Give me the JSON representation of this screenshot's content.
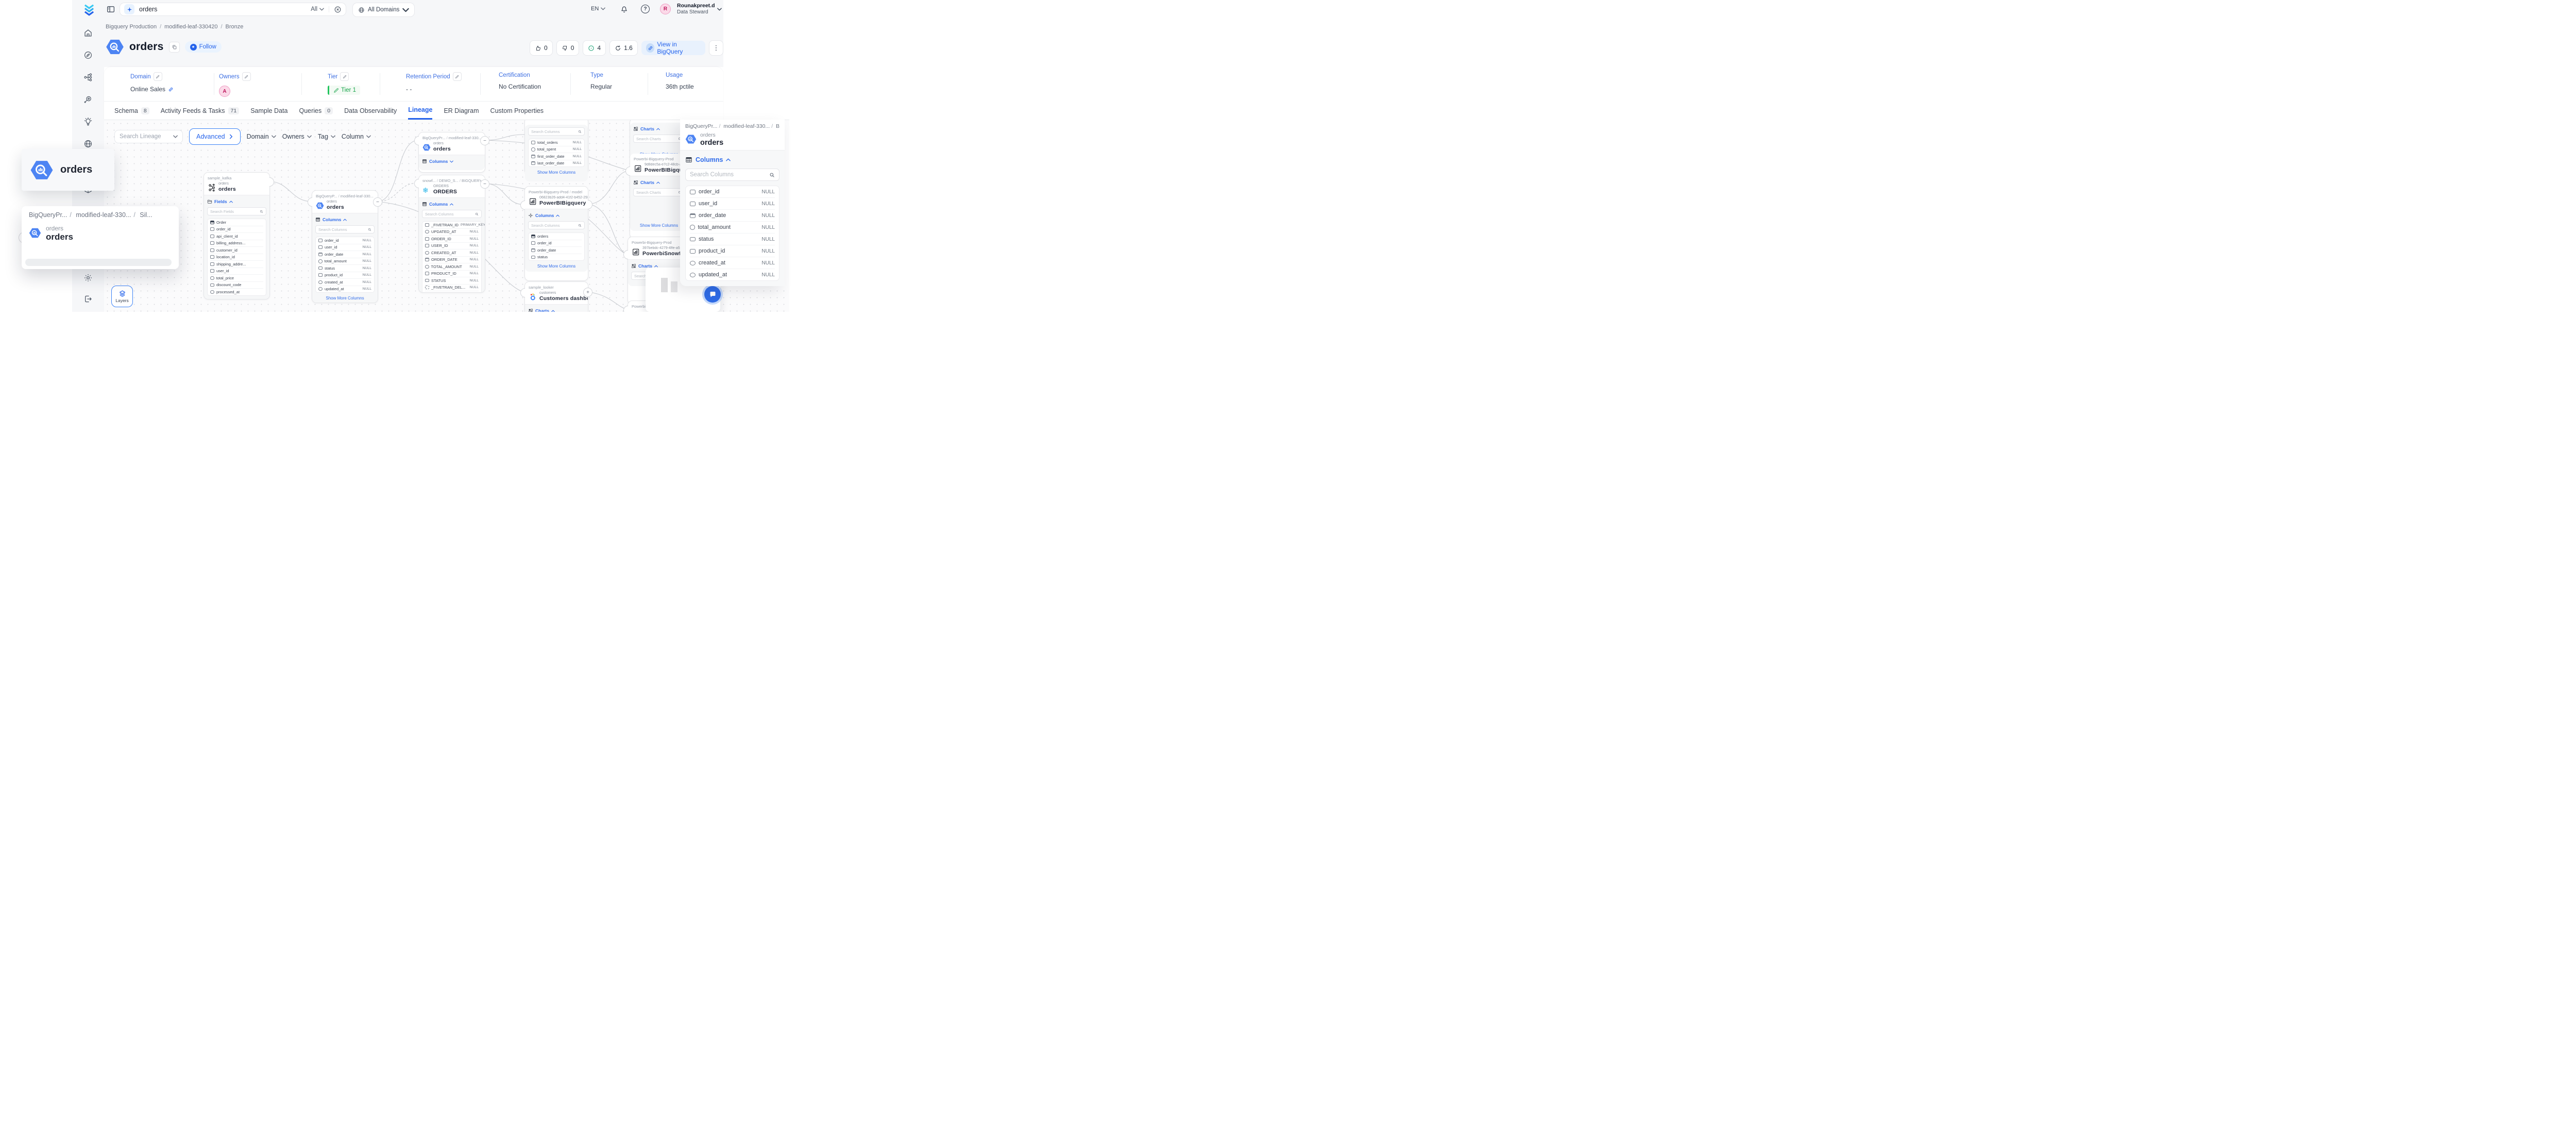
{
  "topbar": {
    "search_value": "orders",
    "search_scope": "All",
    "domains_label": "All Domains",
    "lang": "EN",
    "user_name": "Rounakpreet.d",
    "user_role": "Data Steward",
    "user_initial": "R"
  },
  "page": {
    "breadcrumb": [
      "Bigquery Production",
      "modified-leaf-330420",
      "Bronze"
    ],
    "title": "orders",
    "follow_label": "Follow",
    "actions": {
      "likes": "0",
      "dislikes": "0",
      "issues": "4",
      "score": "1.6",
      "view_label": "View in BigQuery"
    }
  },
  "meta": {
    "items": [
      {
        "label": "Domain",
        "value": "Online Sales"
      },
      {
        "label": "Owners",
        "value": "A"
      },
      {
        "label": "Tier",
        "value": "Tier 1"
      },
      {
        "label": "Retention Period",
        "value": "- -"
      },
      {
        "label": "Certification",
        "value": "No Certification"
      },
      {
        "label": "Type",
        "value": "Regular"
      },
      {
        "label": "Usage",
        "value": "36th pctile"
      }
    ]
  },
  "tabs": [
    {
      "label": "Schema",
      "count": "8"
    },
    {
      "label": "Activity Feeds & Tasks",
      "count": "71"
    },
    {
      "label": "Sample Data"
    },
    {
      "label": "Queries",
      "count": "0"
    },
    {
      "label": "Data Observability"
    },
    {
      "label": "Lineage",
      "active": true
    },
    {
      "label": "ER Diagram"
    },
    {
      "label": "Custom Properties"
    }
  ],
  "lineage": {
    "search_placeholder": "Search Lineage",
    "advanced_label": "Advanced",
    "filters": [
      "Domain",
      "Owners",
      "Tag",
      "Column"
    ],
    "layers_label": "Layers"
  },
  "canvas": {
    "nodes": [
      {
        "id": "kafka",
        "icon": "kafka",
        "source": "sample_kafka",
        "subtitle": "orders",
        "title": "orders",
        "sections": [
          {
            "kind": "toggle",
            "icon": "folder",
            "label": "Fields",
            "dir": "up"
          },
          {
            "kind": "search",
            "placeholder": "Search Fields"
          },
          {
            "kind": "rows",
            "rows": [
              [
                "tbl",
                "Order",
                ""
              ],
              [
                "id",
                "order_id",
                ""
              ],
              [
                "id",
                "api_client_id",
                ""
              ],
              [
                "id",
                "billing_address...",
                ""
              ],
              [
                "id",
                "customer_id",
                ""
              ],
              [
                "id",
                "location_id",
                ""
              ],
              [
                "id",
                "shipping_addre...",
                ""
              ],
              [
                "id",
                "user_id",
                ""
              ],
              [
                "num",
                "total_price",
                ""
              ],
              [
                "abc",
                "discount_code",
                ""
              ],
              [
                "ts",
                "processed_at",
                ""
              ]
            ]
          }
        ]
      },
      {
        "id": "bronze",
        "icon": "bq",
        "bc": [
          "BigQueryP...",
          "modified-leaf-330...",
          "Bro..."
        ],
        "subtitle": "orders",
        "title": "orders",
        "sections": [
          {
            "kind": "toggle",
            "icon": "table",
            "label": "Columns",
            "dir": "up"
          },
          {
            "kind": "search",
            "placeholder": "Search Columns"
          },
          {
            "kind": "rows",
            "rows": [
              [
                "id",
                "order_id",
                "NULL"
              ],
              [
                "id",
                "user_id",
                "NULL"
              ],
              [
                "cal",
                "order_date",
                "NULL"
              ],
              [
                "num",
                "total_amount",
                "NULL"
              ],
              [
                "abc",
                "status",
                "NULL"
              ],
              [
                "id",
                "product_id",
                "NULL"
              ],
              [
                "ts",
                "created_at",
                "NULL"
              ],
              [
                "ts",
                "updated_at",
                "NULL"
              ]
            ]
          },
          {
            "kind": "link",
            "label": "Show More Columns"
          }
        ]
      },
      {
        "id": "silver",
        "icon": "bq",
        "bc": [
          "BigQueryPr...",
          "modified-leaf-330...",
          "Sil..."
        ],
        "subtitle": "orders",
        "title": "orders",
        "sections": [
          {
            "kind": "toggle",
            "icon": "table",
            "label": "Columns",
            "dir": "down"
          }
        ]
      },
      {
        "id": "snowflake",
        "icon": "snowflake",
        "bc": [
          "snowf...",
          "DEMO_S...",
          "BIGQUERYPROD_B..."
        ],
        "subtitle": "ORDERS",
        "title": "ORDERS",
        "sections": [
          {
            "kind": "toggle",
            "icon": "table",
            "label": "Columns",
            "dir": "up"
          },
          {
            "kind": "search",
            "placeholder": "Search Columns"
          },
          {
            "kind": "rows",
            "rows": [
              [
                "key",
                "_FIVETRAN_ID",
                "PRIMARY_KEY"
              ],
              [
                "ts",
                "UPDATED_AT",
                "NULL"
              ],
              [
                "id",
                "ORDER_ID",
                "NULL"
              ],
              [
                "id",
                "USER_ID",
                "NULL"
              ],
              [
                "ts",
                "CREATED_AT",
                "NULL"
              ],
              [
                "cal",
                "ORDER_DATE",
                "NULL"
              ],
              [
                "num",
                "TOTAL_AMOUNT",
                "NULL"
              ],
              [
                "id",
                "PRODUCT_ID",
                "NULL"
              ],
              [
                "abc",
                "STATUS",
                "NULL"
              ],
              [
                "sync",
                "_FIVETRAN_DEL...",
                "NULL"
              ],
              [
                "ts",
                "_FIVETRAN_SY...",
                "NULL"
              ]
            ]
          }
        ]
      },
      {
        "id": "topcut",
        "sections": [
          {
            "kind": "search",
            "placeholder": "Search Columns"
          },
          {
            "kind": "rows",
            "rows": [
              [
                "id",
                "total_orders",
                "NULL"
              ],
              [
                "num",
                "total_spent",
                "NULL"
              ],
              [
                "cal",
                "first_order_date",
                "NULL"
              ],
              [
                "cal",
                "last_order_date",
                "NULL"
              ]
            ]
          },
          {
            "kind": "link",
            "label": "Show More Columns"
          }
        ]
      },
      {
        "id": "pbimodel",
        "icon": "pbi",
        "bc": [
          "Powerbi-Bigquery-Prod",
          "model"
        ],
        "subtitle": "06823b26-add4-41f2-b452-293...",
        "title": "PowerBIBigquery",
        "sections": [
          {
            "kind": "toggle",
            "icon": "model",
            "label": "Columns",
            "dir": "up"
          },
          {
            "kind": "search",
            "placeholder": "Search Columns"
          },
          {
            "kind": "rows",
            "rows": [
              [
                "tbl",
                "orders",
                ""
              ],
              [
                "id",
                "order_id",
                ""
              ],
              [
                "cal",
                "order_date",
                ""
              ],
              [
                "abc",
                "status",
                ""
              ]
            ]
          },
          {
            "kind": "link",
            "label": "Show More Columns"
          }
        ]
      },
      {
        "id": "rtop",
        "sections": [
          {
            "kind": "toggle",
            "icon": "grid",
            "label": "Charts",
            "dir": "up"
          },
          {
            "kind": "search",
            "placeholder": "Search Charts"
          },
          {
            "kind": "gap",
            "h": 6
          },
          {
            "kind": "link",
            "label": "Show More Columns"
          }
        ]
      },
      {
        "id": "rpbibq",
        "icon": "pbi",
        "source": "Powerbi-Bigquery-Prod",
        "subtitle": "9d8dec5a-e7c2-48cb-a854...",
        "title": "PowerBIBigquery",
        "sections": [
          {
            "kind": "toggle",
            "icon": "grid",
            "label": "Charts",
            "dir": "up"
          },
          {
            "kind": "search",
            "placeholder": "Search Charts"
          },
          {
            "kind": "gap",
            "h": 40
          },
          {
            "kind": "link",
            "label": "Show More Columns"
          }
        ]
      },
      {
        "id": "rpbisf",
        "icon": "pbi",
        "source": "Powerbi-Bigquery-Prod",
        "subtitle": "397bebdc-4279-4ffe-a530-...",
        "title": "PowerbiSnowflake",
        "sections": [
          {
            "kind": "toggle",
            "icon": "grid",
            "label": "Charts",
            "dir": "up"
          },
          {
            "kind": "search",
            "placeholder": "Search Charts"
          }
        ]
      },
      {
        "id": "rbottom",
        "source": "Powerbi-Bigquery-Prod",
        "sections": []
      },
      {
        "id": "looker",
        "icon": "looker",
        "source": "sample_looker",
        "subtitle": "customers",
        "title": "Customers dashboard",
        "sections": [
          {
            "kind": "toggle",
            "icon": "grid",
            "label": "Charts",
            "dir": "up"
          }
        ]
      }
    ]
  },
  "overlay": {
    "title": "orders",
    "bc": [
      "BigQueryPr...",
      "modified-leaf-330...",
      "Sil..."
    ],
    "subtitle": "orders",
    "name": "orders"
  },
  "panel": {
    "bc": [
      "BigQueryPr...",
      "modified-leaf-330...",
      "Bro..."
    ],
    "subtitle": "orders",
    "title": "orders",
    "section": "Columns",
    "search_placeholder": "Search Columns",
    "rows": [
      [
        "id",
        "order_id",
        "NULL"
      ],
      [
        "id",
        "user_id",
        "NULL"
      ],
      [
        "cal",
        "order_date",
        "NULL"
      ],
      [
        "num",
        "total_amount",
        "NULL"
      ],
      [
        "abc",
        "status",
        "NULL"
      ],
      [
        "id",
        "product_id",
        "NULL"
      ],
      [
        "ts",
        "created_at",
        "NULL"
      ],
      [
        "ts",
        "updated_at",
        "NULL"
      ]
    ]
  }
}
